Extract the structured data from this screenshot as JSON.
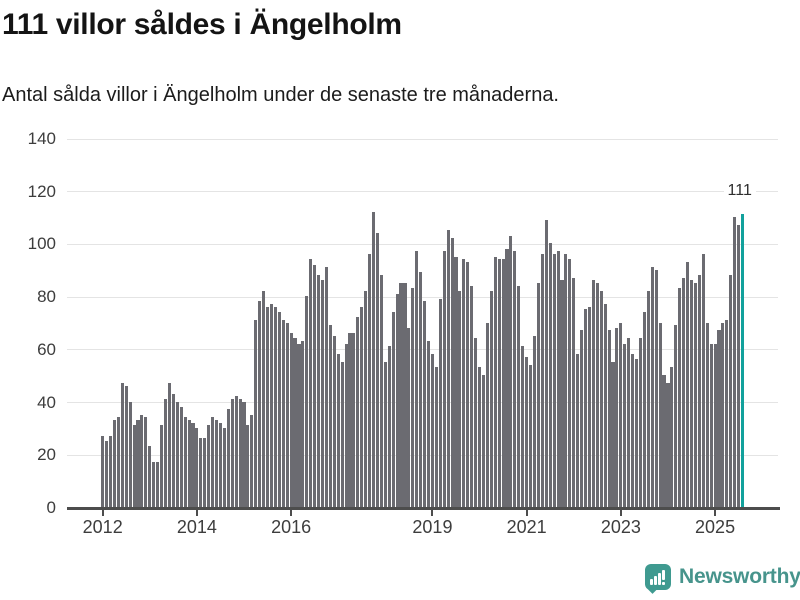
{
  "header": {
    "title": "111 villor såldes i Ängelholm",
    "subtitle": "Antal sålda villor i Ängelholm under de senaste tre månaderna."
  },
  "annotation": {
    "text": "111"
  },
  "footer": {
    "brand": "Newsworthy",
    "logo_icon": "bar-chart-exclamation-speech-bubble-icon"
  },
  "colors": {
    "bar": "#6b6b71",
    "highlight": "#12a19c",
    "grid": "#e4e4e4",
    "axis": "#4d4d4d",
    "tick_label": "#3d3d3d",
    "title": "#141414",
    "brand_text": "#47948c",
    "logo_bg": "#3f9a90"
  },
  "chart_data": {
    "type": "bar",
    "title": "111 villor såldes i Ängelholm",
    "subtitle": "Antal sålda villor i Ängelholm under de senaste tre månaderna.",
    "unit": "sålda villor (rullande 3 månader)",
    "x_start": "2012-01",
    "x_end": "2025-08",
    "points_per_year": 12,
    "ylim": [
      0,
      140
    ],
    "y_ticks": [
      0,
      20,
      40,
      60,
      80,
      100,
      120,
      140
    ],
    "x_tick_years": [
      2012,
      2014,
      2016,
      2019,
      2021,
      2023,
      2025
    ],
    "x_tick_labels": [
      "2012",
      "2014",
      "2016",
      "2019",
      "2021",
      "2023",
      "2025"
    ],
    "grid": true,
    "legend": false,
    "highlight_last": true,
    "last_value_label": "111",
    "values": [
      27,
      25,
      27,
      33,
      34,
      47,
      46,
      40,
      31,
      33,
      35,
      34,
      23,
      17,
      17,
      31,
      41,
      47,
      43,
      40,
      38,
      34,
      33,
      32,
      30,
      26,
      26,
      31,
      34,
      33,
      32,
      30,
      37,
      41,
      42,
      41,
      40,
      31,
      35,
      71,
      78,
      82,
      76,
      77,
      76,
      74,
      71,
      70,
      66,
      64,
      62,
      63,
      80,
      94,
      92,
      88,
      86,
      91,
      69,
      65,
      58,
      55,
      62,
      66,
      66,
      72,
      76,
      82,
      96,
      112,
      104,
      88,
      55,
      61,
      74,
      81,
      85,
      85,
      68,
      83,
      97,
      89,
      78,
      63,
      58,
      53,
      79,
      97,
      105,
      102,
      95,
      82,
      94,
      93,
      84,
      64,
      53,
      50,
      70,
      82,
      95,
      94,
      94,
      98,
      103,
      97,
      84,
      61,
      57,
      54,
      65,
      85,
      96,
      109,
      100,
      96,
      97,
      86,
      96,
      94,
      87,
      58,
      67,
      75,
      76,
      86,
      85,
      82,
      77,
      67,
      55,
      68,
      70,
      62,
      64,
      58,
      56,
      64,
      74,
      82,
      91,
      90,
      70,
      50,
      47,
      53,
      69,
      83,
      87,
      93,
      86,
      85,
      88,
      96,
      70,
      62,
      62,
      67,
      70,
      71,
      88,
      110,
      107,
      111
    ]
  }
}
